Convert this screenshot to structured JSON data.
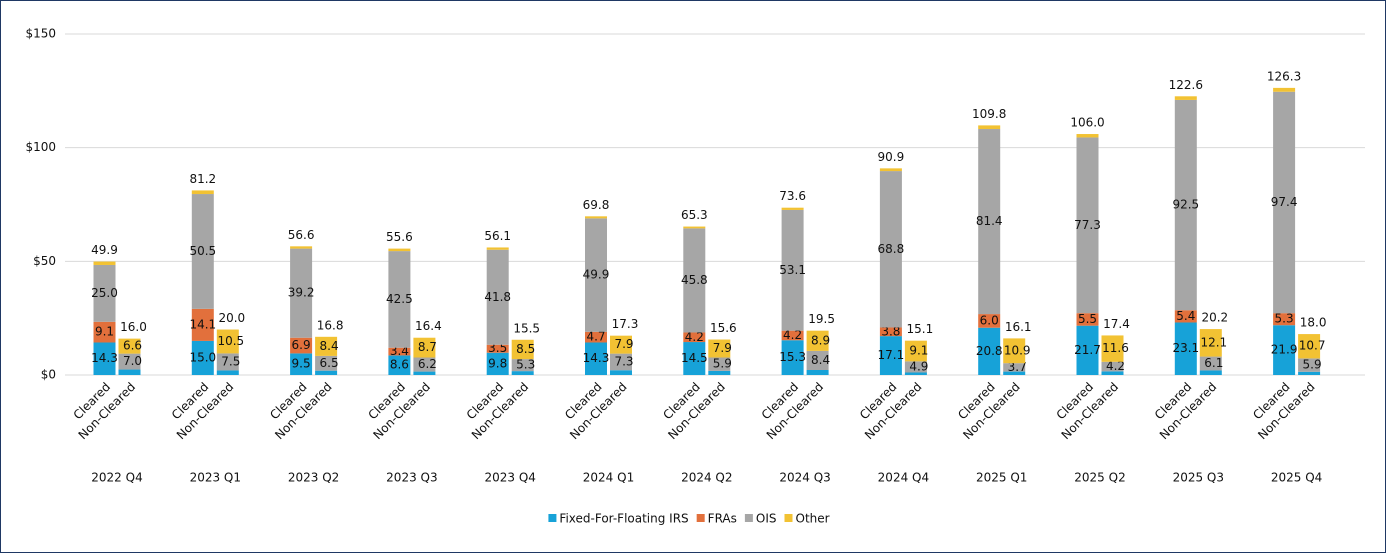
{
  "chart_data": {
    "type": "grouped_stacked_bar",
    "categories": [
      "2022 Q4",
      "2023 Q1",
      "2023 Q2",
      "2023 Q3",
      "2023 Q4",
      "2024 Q1",
      "2024 Q2",
      "2024 Q3",
      "2024 Q4",
      "2025 Q1",
      "2025 Q2",
      "2025 Q3",
      "2025 Q4"
    ],
    "groups": [
      "Cleared",
      "Non-Cleared"
    ],
    "series": [
      {
        "name": "Fixed-For-Floating IRS",
        "color": "#17a2d8",
        "values": [
          [
            14.3,
            2.4
          ],
          [
            15.0,
            2.0
          ],
          [
            9.5,
            1.9
          ],
          [
            8.6,
            1.5
          ],
          [
            9.8,
            1.7
          ],
          [
            14.3,
            2.1
          ],
          [
            14.5,
            1.8
          ],
          [
            15.3,
            2.2
          ],
          [
            17.1,
            1.1
          ],
          [
            20.8,
            1.5
          ],
          [
            21.7,
            1.6
          ],
          [
            23.1,
            2.0
          ],
          [
            21.9,
            1.4
          ]
        ],
        "value_labels": [
          [
            "14.3",
            null
          ],
          [
            "15.0",
            null
          ],
          [
            "9.5",
            null
          ],
          [
            "8.6",
            null
          ],
          [
            "9.8",
            null
          ],
          [
            "14.3",
            null
          ],
          [
            "14.5",
            null
          ],
          [
            "15.3",
            null
          ],
          [
            "17.1",
            null
          ],
          [
            "20.8",
            null
          ],
          [
            "21.7",
            null
          ],
          [
            "23.1",
            null
          ],
          [
            "21.9",
            null
          ]
        ]
      },
      {
        "name": "FRAs",
        "color": "#e2703c",
        "values": [
          [
            9.1,
            0
          ],
          [
            14.1,
            0
          ],
          [
            6.9,
            0
          ],
          [
            3.4,
            0
          ],
          [
            3.5,
            0
          ],
          [
            4.7,
            0
          ],
          [
            4.2,
            0
          ],
          [
            4.2,
            0
          ],
          [
            3.8,
            0
          ],
          [
            6.0,
            0
          ],
          [
            5.5,
            0
          ],
          [
            5.4,
            0
          ],
          [
            5.3,
            0
          ]
        ],
        "value_labels": [
          [
            "9.1",
            null
          ],
          [
            "14.1",
            null
          ],
          [
            "6.9",
            null
          ],
          [
            "3.4",
            null
          ],
          [
            "3.5",
            null
          ],
          [
            "4.7",
            null
          ],
          [
            "4.2",
            null
          ],
          [
            "4.2",
            null
          ],
          [
            "3.8",
            null
          ],
          [
            "6.0",
            null
          ],
          [
            "5.5",
            null
          ],
          [
            "5.4",
            null
          ],
          [
            "5.3",
            null
          ]
        ]
      },
      {
        "name": "OIS",
        "color": "#a6a6a6",
        "values": [
          [
            25.0,
            7.0
          ],
          [
            50.5,
            7.5
          ],
          [
            39.2,
            6.5
          ],
          [
            42.5,
            6.2
          ],
          [
            41.8,
            5.3
          ],
          [
            49.9,
            7.3
          ],
          [
            45.8,
            5.9
          ],
          [
            53.1,
            8.4
          ],
          [
            68.8,
            4.9
          ],
          [
            81.4,
            3.7
          ],
          [
            77.3,
            4.2
          ],
          [
            92.5,
            6.1
          ],
          [
            97.4,
            5.9
          ]
        ],
        "value_labels": [
          [
            "25.0",
            "7.0"
          ],
          [
            "50.5",
            "7.5"
          ],
          [
            "39.2",
            "6.5"
          ],
          [
            "42.5",
            "6.2"
          ],
          [
            "41.8",
            "5.3"
          ],
          [
            "49.9",
            "7.3"
          ],
          [
            "45.8",
            "5.9"
          ],
          [
            "53.1",
            "8.4"
          ],
          [
            "68.8",
            "4.9"
          ],
          [
            "81.4",
            "3.7"
          ],
          [
            "77.3",
            "4.2"
          ],
          [
            "92.5",
            "6.1"
          ],
          [
            "97.4",
            "5.9"
          ]
        ]
      },
      {
        "name": "Other",
        "color": "#f2c233",
        "values": [
          [
            1.5,
            6.6
          ],
          [
            1.6,
            10.5
          ],
          [
            1.0,
            8.4
          ],
          [
            1.1,
            8.7
          ],
          [
            1.0,
            8.5
          ],
          [
            0.9,
            7.9
          ],
          [
            0.8,
            7.9
          ],
          [
            1.0,
            8.9
          ],
          [
            1.2,
            9.1
          ],
          [
            1.6,
            10.9
          ],
          [
            1.5,
            11.6
          ],
          [
            1.6,
            12.1
          ],
          [
            1.7,
            10.7
          ]
        ],
        "value_labels": [
          [
            null,
            "6.6"
          ],
          [
            null,
            "10.5"
          ],
          [
            null,
            "8.4"
          ],
          [
            null,
            "8.7"
          ],
          [
            null,
            "8.5"
          ],
          [
            null,
            "7.9"
          ],
          [
            null,
            "7.9"
          ],
          [
            null,
            "8.9"
          ],
          [
            null,
            "9.1"
          ],
          [
            null,
            "10.9"
          ],
          [
            null,
            "11.6"
          ],
          [
            null,
            "12.1"
          ],
          [
            null,
            "10.7"
          ]
        ]
      }
    ],
    "totals": [
      [
        49.9,
        16.0
      ],
      [
        81.2,
        20.0
      ],
      [
        56.6,
        16.8
      ],
      [
        55.6,
        16.4
      ],
      [
        56.1,
        15.5
      ],
      [
        69.8,
        17.3
      ],
      [
        65.3,
        15.6
      ],
      [
        73.6,
        19.5
      ],
      [
        90.9,
        15.1
      ],
      [
        109.8,
        16.1
      ],
      [
        106.0,
        17.4
      ],
      [
        122.6,
        20.2
      ],
      [
        126.3,
        18.0
      ]
    ],
    "total_labels": [
      [
        "49.9",
        "16.0"
      ],
      [
        "81.2",
        "20.0"
      ],
      [
        "56.6",
        "16.8"
      ],
      [
        "55.6",
        "16.4"
      ],
      [
        "56.1",
        "15.5"
      ],
      [
        "69.8",
        "17.3"
      ],
      [
        "65.3",
        "15.6"
      ],
      [
        "73.6",
        "19.5"
      ],
      [
        "90.9",
        "15.1"
      ],
      [
        "109.8",
        "16.1"
      ],
      [
        "106.0",
        "17.4"
      ],
      [
        "122.6",
        "20.2"
      ],
      [
        "126.3",
        "18.0"
      ]
    ],
    "ylim": [
      0,
      150
    ],
    "yticks": [
      {
        "value": 0,
        "label": "$0"
      },
      {
        "value": 50,
        "label": "$50"
      },
      {
        "value": 100,
        "label": "$100"
      },
      {
        "value": 150,
        "label": "$150"
      }
    ],
    "grid": true,
    "legend": "bottom"
  }
}
